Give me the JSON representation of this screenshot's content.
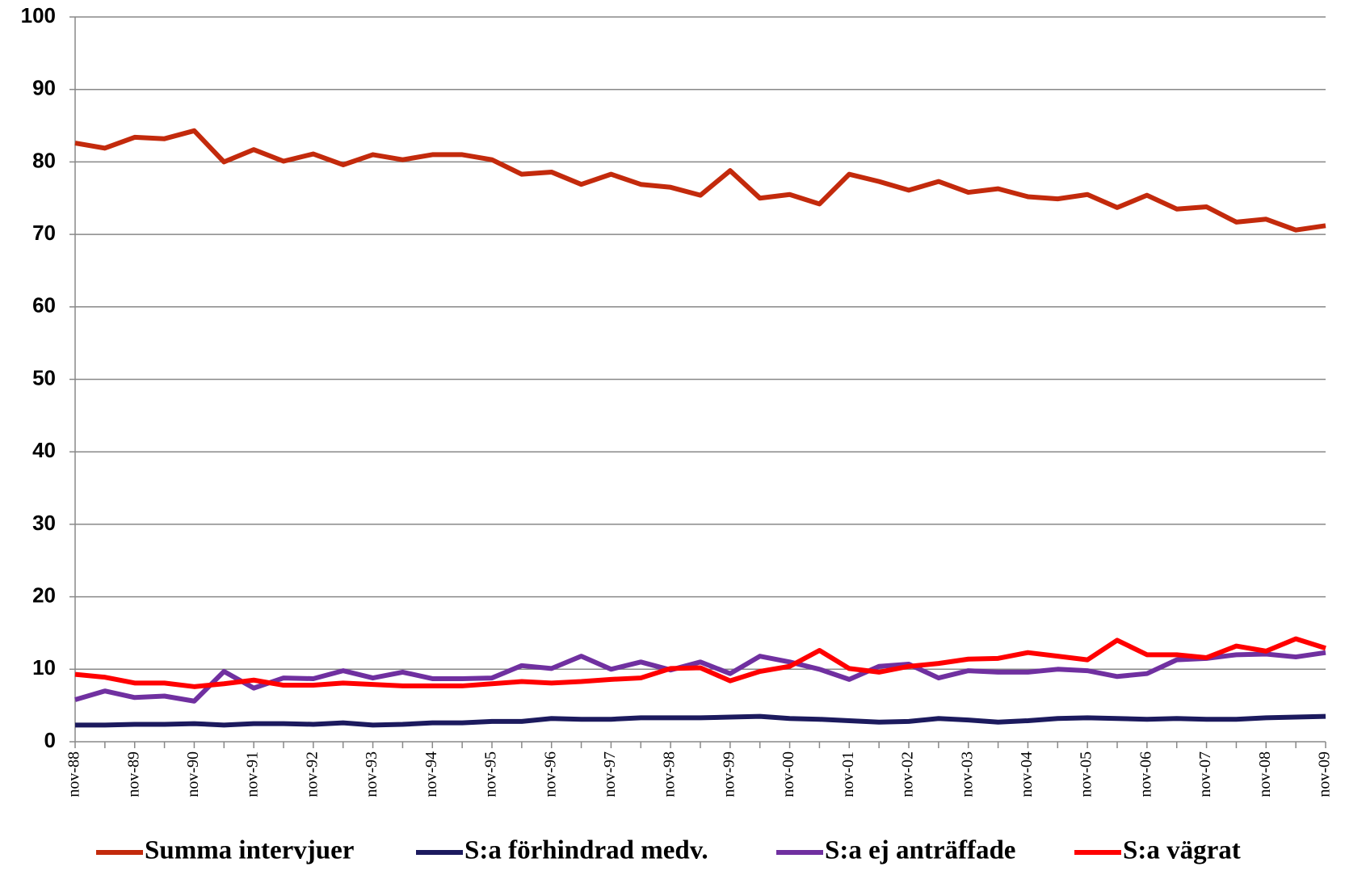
{
  "chart_data": {
    "type": "line",
    "categories": [
      "nov-88",
      null,
      "nov-89",
      null,
      "nov-90",
      null,
      "nov-91",
      null,
      "nov-92",
      null,
      "nov-93",
      null,
      "nov-94",
      null,
      "nov-95",
      null,
      "nov-96",
      null,
      "nov-97",
      null,
      "nov-98",
      null,
      "nov-99",
      null,
      "nov-00",
      null,
      "nov-01",
      null,
      "nov-02",
      null,
      "nov-03",
      null,
      "nov-04",
      null,
      "nov-05",
      null,
      "nov-06",
      null,
      "nov-07",
      null,
      "nov-08",
      null,
      "nov-09"
    ],
    "series": [
      {
        "name": "Summa intervjuer",
        "color": "#c32a0c",
        "values": [
          82.6,
          81.9,
          83.4,
          83.2,
          84.3,
          80.0,
          81.7,
          80.1,
          81.1,
          79.6,
          81.0,
          80.3,
          81.0,
          81.0,
          80.3,
          78.3,
          78.6,
          76.9,
          78.3,
          76.9,
          76.5,
          75.4,
          78.8,
          75.0,
          75.5,
          74.2,
          78.3,
          77.3,
          76.1,
          77.3,
          75.8,
          76.3,
          75.2,
          74.9,
          75.5,
          73.7,
          75.4,
          73.5,
          73.8,
          71.7,
          72.1,
          70.6,
          71.2
        ]
      },
      {
        "name": "S:a förhindrad medv.",
        "color": "#1c1a5e",
        "values": [
          2.3,
          2.3,
          2.4,
          2.4,
          2.5,
          2.3,
          2.5,
          2.5,
          2.4,
          2.6,
          2.3,
          2.4,
          2.6,
          2.6,
          2.8,
          2.8,
          3.2,
          3.1,
          3.1,
          3.3,
          3.3,
          3.3,
          3.4,
          3.5,
          3.2,
          3.1,
          2.9,
          2.7,
          2.8,
          3.2,
          3.0,
          2.7,
          2.9,
          3.2,
          3.3,
          3.2,
          3.1,
          3.2,
          3.1,
          3.1,
          3.3,
          3.4,
          3.5
        ]
      },
      {
        "name": "S:a ej anträffade",
        "color": "#7030a0",
        "values": [
          5.8,
          7.0,
          6.1,
          6.3,
          5.6,
          9.7,
          7.4,
          8.8,
          8.7,
          9.8,
          8.8,
          9.6,
          8.7,
          8.7,
          8.8,
          10.5,
          10.1,
          11.8,
          10.0,
          11.0,
          9.9,
          11.0,
          9.4,
          11.8,
          11.0,
          10.0,
          8.6,
          10.4,
          10.7,
          8.8,
          9.8,
          9.6,
          9.6,
          10.0,
          9.8,
          9.0,
          9.4,
          11.3,
          11.5,
          12.0,
          12.1,
          11.7,
          12.3
        ]
      },
      {
        "name": "S:a vägrat",
        "color": "#ff0000",
        "values": [
          9.3,
          8.9,
          8.1,
          8.1,
          7.6,
          8.0,
          8.5,
          7.8,
          7.8,
          8.1,
          7.9,
          7.7,
          7.7,
          7.7,
          8.0,
          8.3,
          8.1,
          8.3,
          8.6,
          8.8,
          10.1,
          10.2,
          8.4,
          9.7,
          10.4,
          12.6,
          10.1,
          9.6,
          10.4,
          10.8,
          11.4,
          11.5,
          12.3,
          11.8,
          11.3,
          14.0,
          12.0,
          12.0,
          11.6,
          13.2,
          12.5,
          14.2,
          12.9
        ]
      }
    ],
    "ylim": [
      0,
      100
    ],
    "yticks": [
      0,
      10,
      20,
      30,
      40,
      50,
      60,
      70,
      80,
      90,
      100
    ],
    "grid": true,
    "legend": "bottom"
  }
}
